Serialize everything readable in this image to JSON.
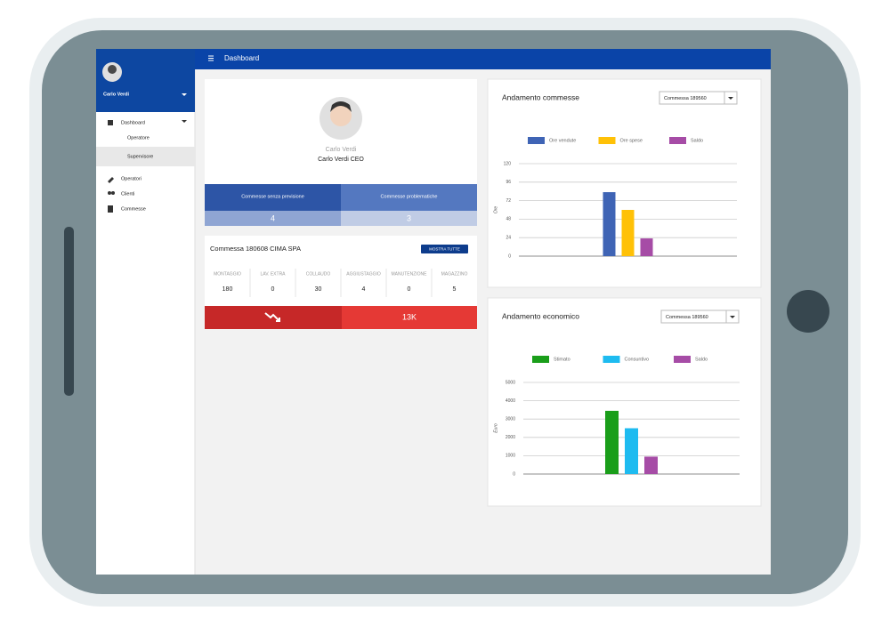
{
  "header": {
    "title": "Dashboard"
  },
  "sidebar": {
    "user": "Carlo Verdi",
    "menu": [
      {
        "label": "Dashboard",
        "children": [
          "Operatore",
          "Supervisore"
        ]
      },
      {
        "label": "Operatori"
      },
      {
        "label": "Clienti"
      },
      {
        "label": "Commesse"
      }
    ]
  },
  "profile": {
    "name": "Carlo Verdi",
    "role": "Carlo Verdi CEO",
    "stats": [
      {
        "label": "Commesse senza previsione",
        "value": 4
      },
      {
        "label": "Commesse problematiche",
        "value": 3
      }
    ]
  },
  "commessa": {
    "title": "Commessa 180608 CIMA SPA",
    "button": "MOSTRA TUTTE",
    "columns": [
      {
        "label": "MONTAGGIO",
        "value": 180
      },
      {
        "label": "LAV. EXTRA",
        "value": 0
      },
      {
        "label": "COLLAUDO",
        "value": 30
      },
      {
        "label": "AGGIUSTAGGIO",
        "value": 4
      },
      {
        "label": "MANUTENZIONE",
        "value": 0
      },
      {
        "label": "MAGAZZINO",
        "value": 5
      }
    ],
    "total": "13K"
  },
  "chart_data": [
    {
      "type": "bar",
      "title": "Andamento commesse",
      "dropdown": "Commessa 189560",
      "y_label": "Ore",
      "categories": [
        null
      ],
      "series": [
        {
          "name": "Ore vendute",
          "color": "#3f64b5",
          "values": [
            83
          ]
        },
        {
          "name": "Ore spese",
          "color": "#ffc107",
          "values": [
            60
          ]
        },
        {
          "name": "Saldo",
          "color": "#a64ca6",
          "values": [
            23
          ]
        }
      ],
      "ylim": [
        0,
        120
      ],
      "yticks": [
        0,
        24,
        48,
        72,
        96,
        120
      ],
      "grid": true
    },
    {
      "type": "bar",
      "title": "Andamento economico",
      "dropdown": "Commessa 189560",
      "y_label": "Euro",
      "categories": [
        null
      ],
      "series": [
        {
          "name": "Stimato",
          "color": "#1a9e1a",
          "values": [
            3450
          ]
        },
        {
          "name": "Consuntivo",
          "color": "#1ebbf0",
          "values": [
            2500
          ]
        },
        {
          "name": "Saldo",
          "color": "#a64ca6",
          "values": [
            950
          ]
        }
      ],
      "ylim": [
        0,
        5000
      ],
      "yticks": [
        0,
        1000,
        2000,
        3000,
        4000,
        5000
      ],
      "grid": true
    }
  ]
}
